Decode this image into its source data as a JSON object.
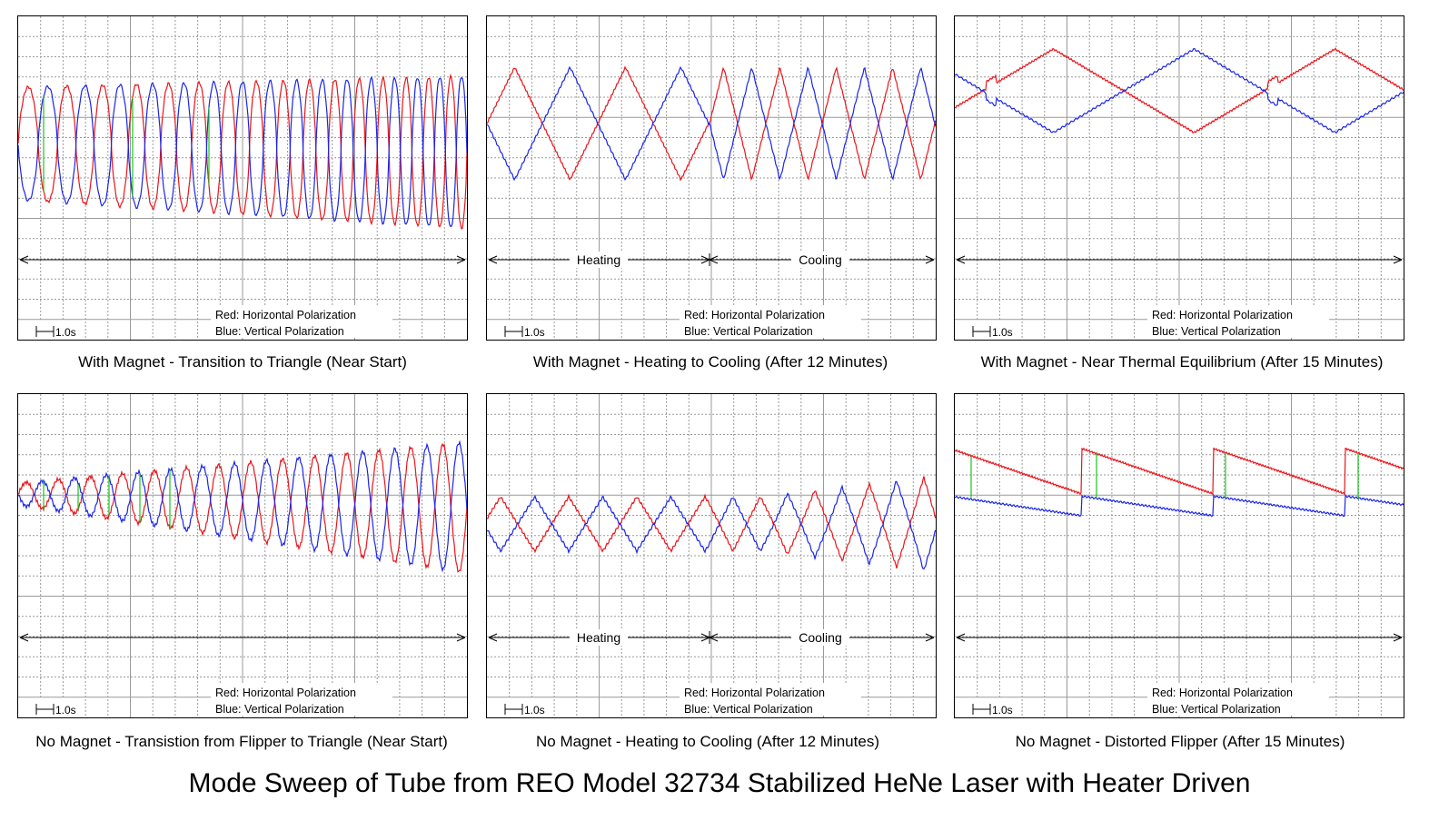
{
  "main_title": "Mode Sweep of Tube from REO Model 32734 Stabilized HeNe Laser with Heater Driven",
  "legend": {
    "red": "Red: Horizontal Polarization",
    "blue": "Blue: Vertical Polarization"
  },
  "timescale_label": "1.0s",
  "colors": {
    "red": "#e8151b",
    "blue": "#1a25e6",
    "green": "#19c619",
    "grid": "#9a9a9a"
  },
  "chart_data": [
    {
      "type": "line",
      "title": "With Magnet - Transition to Triangle (Near Start)",
      "phase_labels": [],
      "axes": {
        "x_divisions": 20,
        "y_divisions": 16
      },
      "series": [
        {
          "name": "Red: Horizontal Polarization",
          "color": "#e8151b"
        },
        {
          "name": "Blue: Vertical Polarization",
          "color": "#1a25e6"
        }
      ]
    },
    {
      "type": "line",
      "title": "With Magnet - Heating to Cooling (After 12 Minutes)",
      "phase_labels": [
        "Heating",
        "Cooling"
      ],
      "axes": {
        "x_divisions": 20,
        "y_divisions": 16
      },
      "series": [
        {
          "name": "Red: Horizontal Polarization",
          "color": "#e8151b"
        },
        {
          "name": "Blue: Vertical Polarization",
          "color": "#1a25e6"
        }
      ]
    },
    {
      "type": "line",
      "title": "With Magnet - Near Thermal Equilibrium (After 15 Minutes)",
      "phase_labels": [],
      "axes": {
        "x_divisions": 20,
        "y_divisions": 16
      },
      "series": [
        {
          "name": "Red: Horizontal Polarization",
          "color": "#e8151b"
        },
        {
          "name": "Blue: Vertical Polarization",
          "color": "#1a25e6"
        }
      ]
    },
    {
      "type": "line",
      "title": "No Magnet - Transistion from Flipper to Triangle (Near Start)",
      "phase_labels": [],
      "axes": {
        "x_divisions": 20,
        "y_divisions": 16
      },
      "series": [
        {
          "name": "Red: Horizontal Polarization",
          "color": "#e8151b"
        },
        {
          "name": "Blue: Vertical Polarization",
          "color": "#1a25e6"
        }
      ]
    },
    {
      "type": "line",
      "title": "No Magnet - Heating to Cooling (After 12 Minutes)",
      "phase_labels": [
        "Heating",
        "Cooling"
      ],
      "axes": {
        "x_divisions": 20,
        "y_divisions": 16
      },
      "series": [
        {
          "name": "Red: Horizontal Polarization",
          "color": "#e8151b"
        },
        {
          "name": "Blue: Vertical Polarization",
          "color": "#1a25e6"
        }
      ]
    },
    {
      "type": "line",
      "title": "No Magnet - Distorted Flipper (After 15 Minutes)",
      "phase_labels": [],
      "axes": {
        "x_divisions": 20,
        "y_divisions": 16
      },
      "series": [
        {
          "name": "Red: Horizontal Polarization",
          "color": "#e8151b"
        },
        {
          "name": "Blue: Vertical Polarization",
          "color": "#1a25e6"
        }
      ]
    }
  ]
}
